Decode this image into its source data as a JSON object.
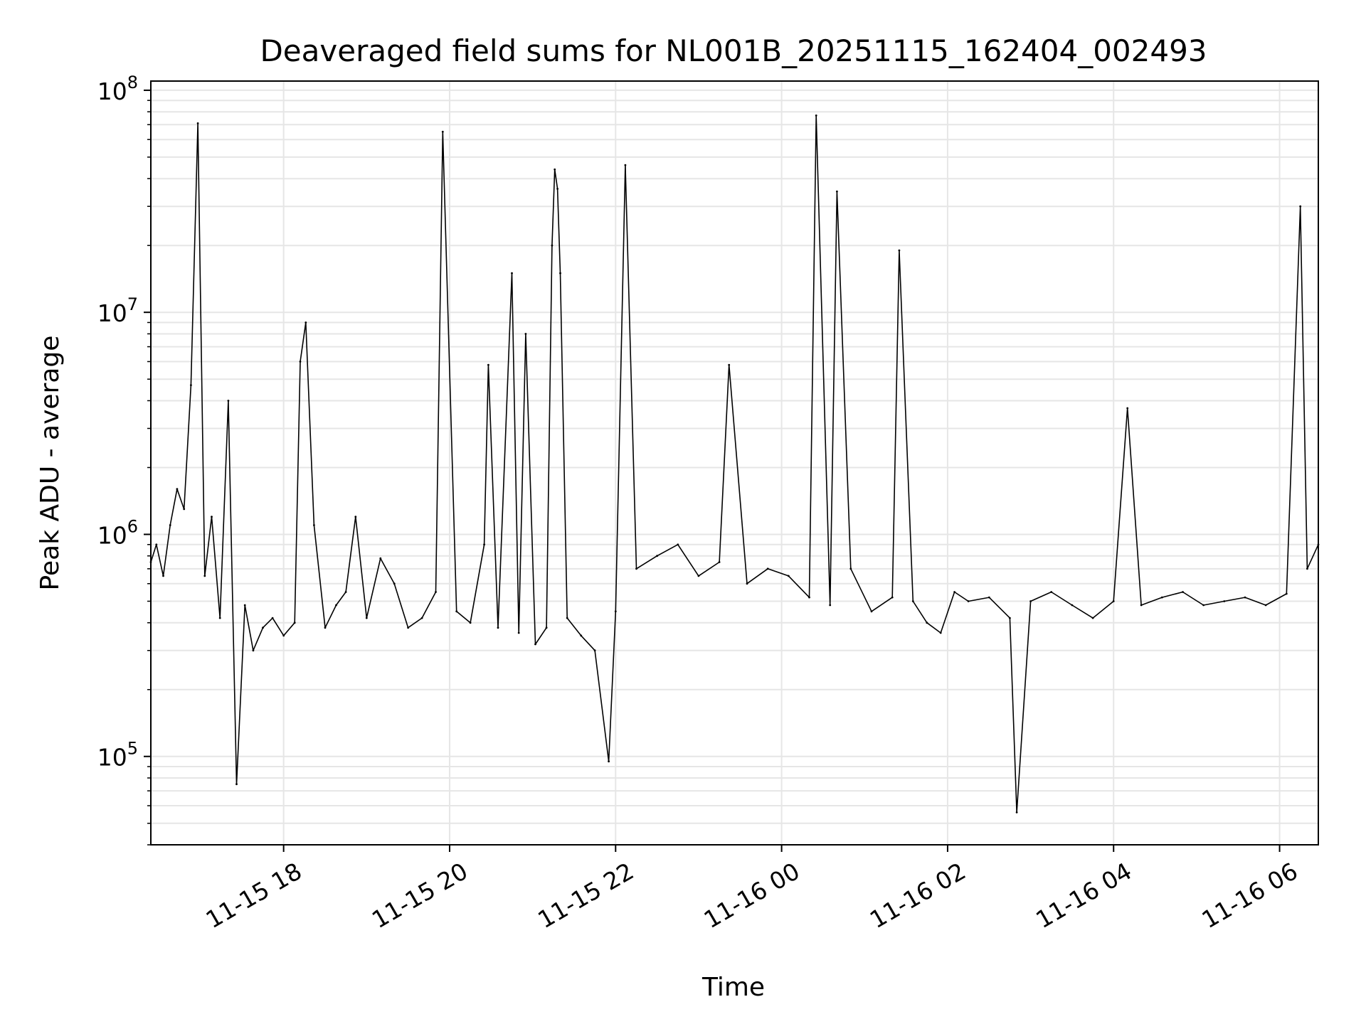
{
  "chart_data": {
    "type": "line",
    "title": "Deaveraged field sums for NL001B_20251115_162404_002493",
    "xlabel": "Time",
    "ylabel": "Peak ADU - average",
    "y_scale": "log",
    "ylim": [
      40000,
      110000000
    ],
    "xlim": [
      "2025-11-15 16:24",
      "2025-11-16 06:28"
    ],
    "grid": true,
    "line_color": "#000000",
    "grid_color": "#e6e6e6",
    "x_ticks": [
      {
        "value": "2025-11-15 18:00",
        "label": "11-15 18"
      },
      {
        "value": "2025-11-15 20:00",
        "label": "11-15 20"
      },
      {
        "value": "2025-11-15 22:00",
        "label": "11-15 22"
      },
      {
        "value": "2025-11-16 00:00",
        "label": "11-16 00"
      },
      {
        "value": "2025-11-16 02:00",
        "label": "11-16 02"
      },
      {
        "value": "2025-11-16 04:00",
        "label": "11-16 04"
      },
      {
        "value": "2025-11-16 06:00",
        "label": "11-16 06"
      }
    ],
    "y_ticks": [
      {
        "value": 100000,
        "base": "10",
        "exp": "5"
      },
      {
        "value": 1000000,
        "base": "10",
        "exp": "6"
      },
      {
        "value": 10000000,
        "base": "10",
        "exp": "7"
      },
      {
        "value": 100000000,
        "base": "10",
        "exp": "8"
      }
    ],
    "series": [
      {
        "x": [
          "2025-11-15 16:24",
          "2025-11-15 16:28",
          "2025-11-15 16:33",
          "2025-11-15 16:38",
          "2025-11-15 16:43",
          "2025-11-15 16:48",
          "2025-11-15 16:53",
          "2025-11-15 16:58",
          "2025-11-15 17:03",
          "2025-11-15 17:08",
          "2025-11-15 17:14",
          "2025-11-15 17:20",
          "2025-11-15 17:26",
          "2025-11-15 17:32",
          "2025-11-15 17:38",
          "2025-11-15 17:45",
          "2025-11-15 17:52",
          "2025-11-15 18:00",
          "2025-11-15 18:08",
          "2025-11-15 18:12",
          "2025-11-15 18:16",
          "2025-11-15 18:22",
          "2025-11-15 18:30",
          "2025-11-15 18:38",
          "2025-11-15 18:45",
          "2025-11-15 18:52",
          "2025-11-15 19:00",
          "2025-11-15 19:10",
          "2025-11-15 19:20",
          "2025-11-15 19:30",
          "2025-11-15 19:40",
          "2025-11-15 19:50",
          "2025-11-15 19:55",
          "2025-11-15 20:05",
          "2025-11-15 20:15",
          "2025-11-15 20:25",
          "2025-11-15 20:28",
          "2025-11-15 20:35",
          "2025-11-15 20:45",
          "2025-11-15 20:50",
          "2025-11-15 20:55",
          "2025-11-15 21:02",
          "2025-11-15 21:10",
          "2025-11-15 21:14",
          "2025-11-15 21:16",
          "2025-11-15 21:18",
          "2025-11-15 21:20",
          "2025-11-15 21:25",
          "2025-11-15 21:35",
          "2025-11-15 21:45",
          "2025-11-15 21:55",
          "2025-11-15 22:00",
          "2025-11-15 22:07",
          "2025-11-15 22:15",
          "2025-11-15 22:30",
          "2025-11-15 22:45",
          "2025-11-15 23:00",
          "2025-11-15 23:15",
          "2025-11-15 23:22",
          "2025-11-15 23:35",
          "2025-11-15 23:50",
          "2025-11-16 00:05",
          "2025-11-16 00:20",
          "2025-11-16 00:25",
          "2025-11-16 00:35",
          "2025-11-16 00:40",
          "2025-11-16 00:50",
          "2025-11-16 01:05",
          "2025-11-16 01:20",
          "2025-11-16 01:25",
          "2025-11-16 01:35",
          "2025-11-16 01:45",
          "2025-11-16 01:55",
          "2025-11-16 02:05",
          "2025-11-16 02:15",
          "2025-11-16 02:30",
          "2025-11-16 02:45",
          "2025-11-16 02:50",
          "2025-11-16 03:00",
          "2025-11-16 03:15",
          "2025-11-16 03:30",
          "2025-11-16 03:45",
          "2025-11-16 04:00",
          "2025-11-16 04:10",
          "2025-11-16 04:20",
          "2025-11-16 04:35",
          "2025-11-16 04:50",
          "2025-11-16 05:05",
          "2025-11-16 05:20",
          "2025-11-16 05:35",
          "2025-11-16 05:50",
          "2025-11-16 06:05",
          "2025-11-16 06:15",
          "2025-11-16 06:20",
          "2025-11-16 06:28"
        ],
        "values": [
          750000,
          900000,
          650000,
          1100000,
          1600000,
          1300000,
          4700000,
          71000000,
          650000,
          1200000,
          420000,
          4000000,
          75000,
          480000,
          300000,
          380000,
          420000,
          350000,
          400000,
          6000000,
          9000000,
          1100000,
          380000,
          480000,
          550000,
          1200000,
          420000,
          780000,
          600000,
          380000,
          420000,
          550000,
          65000000,
          450000,
          400000,
          900000,
          5800000,
          380000,
          15000000,
          360000,
          8000000,
          320000,
          380000,
          20000000,
          44000000,
          36000000,
          15000000,
          420000,
          350000,
          300000,
          95000,
          450000,
          46000000,
          700000,
          800000,
          900000,
          650000,
          750000,
          5800000,
          600000,
          700000,
          650000,
          520000,
          77000000,
          480000,
          35000000,
          700000,
          450000,
          520000,
          19000000,
          500000,
          400000,
          360000,
          550000,
          500000,
          520000,
          420000,
          56000,
          500000,
          550000,
          480000,
          420000,
          500000,
          3700000,
          480000,
          520000,
          550000,
          480000,
          500000,
          520000,
          480000,
          540000,
          30000000,
          700000,
          900000
        ]
      }
    ]
  }
}
